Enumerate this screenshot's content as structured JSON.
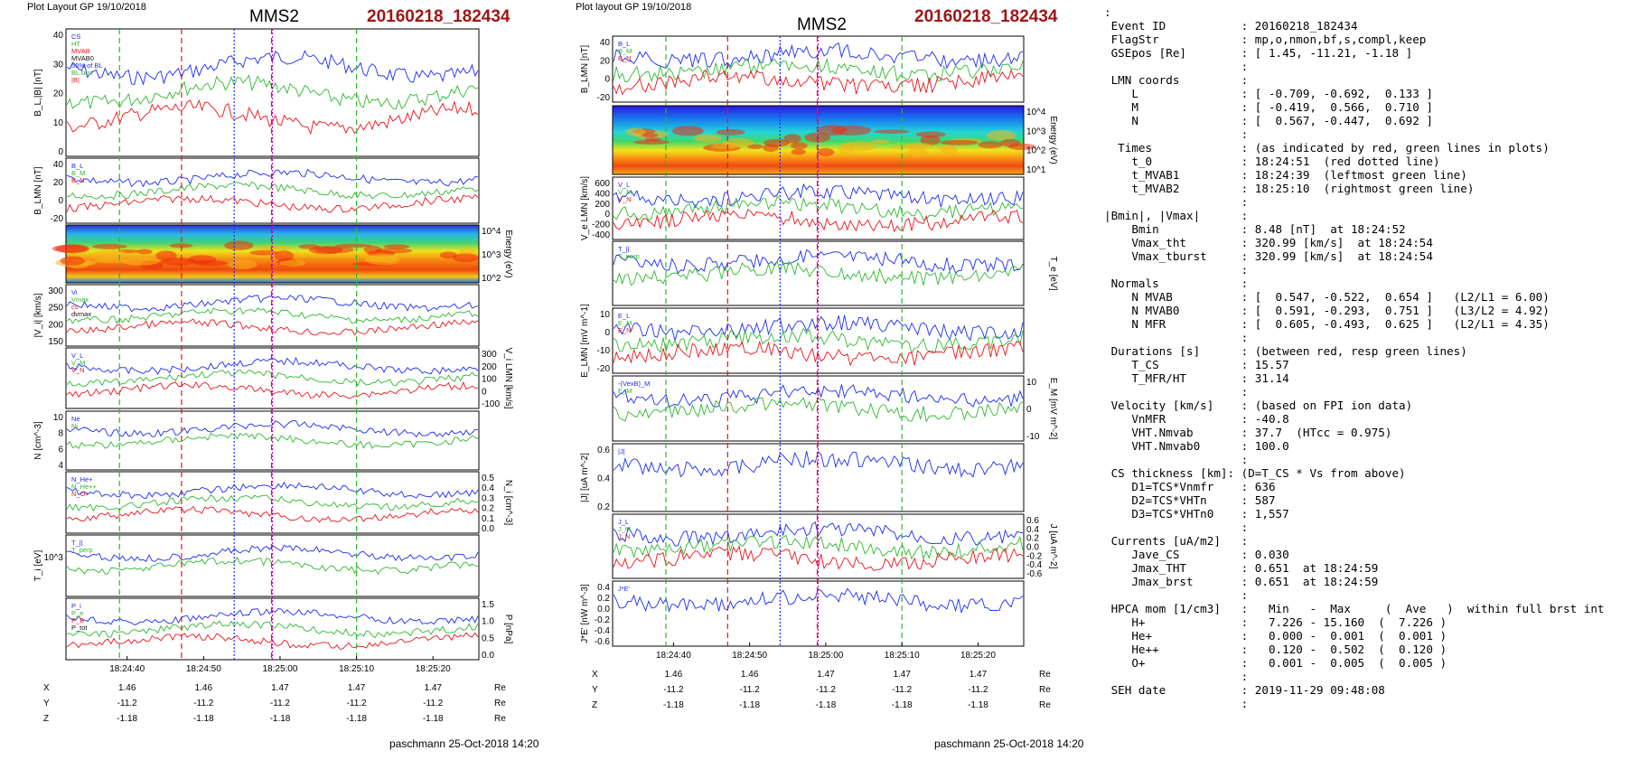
{
  "page": {
    "left_header": "Plot Layout GP 19/10/2018",
    "right_header": "Plot layout GP 19/10/2018",
    "left_title": "MMS2",
    "right_title": "MMS2",
    "left_event": "20160218_182434",
    "right_event": "20160218_182434",
    "left_footer": "paschmann 25-Oct-2018 14:20",
    "right_footer": "paschmann 25-Oct-2018 14:20"
  },
  "colors": {
    "red": "#e8141b",
    "green": "#2eb82e",
    "blue": "#1a2cf0",
    "magenta": "#c000c0",
    "gray": "#999999",
    "black": "#111111"
  },
  "chart_data": [
    {
      "type": "line",
      "title": "MMS2",
      "subtitle": "20160218_182434",
      "x_ticks": [
        "18:24:40",
        "18:24:50",
        "18:25:00",
        "18:25:10",
        "18:25:20"
      ],
      "markers": {
        "t0": "18:24:51",
        "t_MVAB1": "18:24:39",
        "t_MVAB2": "18:25:10",
        "t_center": "18:24:54",
        "t_jmax": "18:24:59"
      },
      "position_table": {
        "rows": [
          {
            "label": "X",
            "values": [
              "1.46",
              "1.46",
              "1.47",
              "1.47",
              "1.47"
            ],
            "unit": "Re"
          },
          {
            "label": "Y",
            "values": [
              "-11.2",
              "-11.2",
              "-11.2",
              "-11.2",
              "-11.2"
            ],
            "unit": "Re"
          },
          {
            "label": "Z",
            "values": [
              "-1.18",
              "-1.18",
              "-1.18",
              "-1.18",
              "-1.18"
            ],
            "unit": "Re"
          }
        ]
      },
      "panels": [
        {
          "ylabel": "B_L,|B| [nT]",
          "yticks": [
            "40",
            "30",
            "20",
            "10",
            "0"
          ],
          "legend": [
            "CS",
            "HT",
            "MVAB",
            "MVAB0",
            "50% of BL",
            "BL brst",
            "|B|"
          ]
        },
        {
          "ylabel": "B_LMN [nT]",
          "yticks": [
            "40",
            "20",
            "0",
            "-20"
          ],
          "legend": [
            "B_L",
            "B_M",
            "B_N"
          ]
        },
        {
          "ylabel": "Energy (eV)",
          "yticks": [
            "10^4",
            "10^3",
            "10^2"
          ],
          "type": "spectrogram"
        },
        {
          "ylabel": "|V_i| [km/s]",
          "yticks": [
            "300",
            "250",
            "200",
            "150"
          ],
          "legend": [
            "Vi",
            "Vmax",
            "cs",
            "dvmax"
          ]
        },
        {
          "ylabel": "V_i LMN [km/s]",
          "yticks": [
            "300",
            "200",
            "100",
            "0",
            "-100"
          ],
          "legend": [
            "V_L",
            "V_M",
            "V_N"
          ]
        },
        {
          "ylabel": "N [cm^-3]",
          "yticks": [
            "10",
            "8",
            "6",
            "4"
          ],
          "legend": [
            "Ne",
            "Ni"
          ]
        },
        {
          "ylabel": "N_i [cm^-3]",
          "yticks": [
            "0.5",
            "0.4",
            "0.3",
            "0.2",
            "0.1",
            "0.0"
          ],
          "legend": [
            "N_He+",
            "N_He++",
            "N_O+"
          ]
        },
        {
          "ylabel": "T_i [eV]",
          "yticks": [
            "10^3"
          ],
          "legend": [
            "T_||",
            "T_perp"
          ]
        },
        {
          "ylabel": "P [nPa]",
          "yticks": [
            "1.5",
            "1.0",
            "0.5",
            "0.0"
          ],
          "legend": [
            "P_i",
            "P_e",
            "P_B",
            "P_tot"
          ]
        }
      ]
    },
    {
      "type": "line",
      "title": "MMS2",
      "subtitle": "20160218_182434",
      "x_ticks": [
        "18:24:40",
        "18:24:50",
        "18:25:00",
        "18:25:10",
        "18:25:20"
      ],
      "position_table": {
        "rows": [
          {
            "label": "X",
            "values": [
              "1.46",
              "1.46",
              "1.47",
              "1.47",
              "1.47"
            ],
            "unit": "Re"
          },
          {
            "label": "Y",
            "values": [
              "-11.2",
              "-11.2",
              "-11.2",
              "-11.2",
              "-11.2"
            ],
            "unit": "Re"
          },
          {
            "label": "Z",
            "values": [
              "-1.18",
              "-1.18",
              "-1.18",
              "-1.18",
              "-1.18"
            ],
            "unit": "Re"
          }
        ]
      },
      "panels": [
        {
          "ylabel": "B_LMN [nT]",
          "yticks": [
            "40",
            "20",
            "0",
            "-20"
          ],
          "legend": [
            "B_L",
            "B_M",
            "B_N"
          ]
        },
        {
          "ylabel": "Energy (eV)",
          "yticks": [
            "10^4",
            "10^3",
            "10^2",
            "10^1"
          ],
          "type": "spectrogram"
        },
        {
          "ylabel": "V_e LMN [km/s]",
          "yticks": [
            "600",
            "400",
            "200",
            "0",
            "-200",
            "-400"
          ],
          "legend": [
            "V_L",
            "V_M",
            "V_N"
          ]
        },
        {
          "ylabel": "T_e [eV]",
          "yticks": [],
          "legend": [
            "T_||",
            "T_perp"
          ]
        },
        {
          "ylabel": "E_LMN [mV m^-1]",
          "yticks": [
            "10",
            "0",
            "-10",
            "-20"
          ],
          "legend": [
            "E_L",
            "E_M",
            "E_N"
          ]
        },
        {
          "ylabel": "E_M [mV m^-2]",
          "yticks": [
            "10",
            "0",
            "-10"
          ],
          "legend": [
            "-(VexB)_M",
            "E_M"
          ]
        },
        {
          "ylabel": "|J| [uA m^-2]",
          "yticks": [
            "0.6",
            "0.4",
            "0.2"
          ],
          "legend": [
            "|J|"
          ]
        },
        {
          "ylabel": "J [uA m^-2]",
          "yticks": [
            "0.6",
            "0.4",
            "0.2",
            "0.0",
            "-0.2",
            "-0.4",
            "-0.6"
          ],
          "legend": [
            "J_L",
            "J_M",
            "J_N"
          ]
        },
        {
          "ylabel": "J*E' [nW m^-3]",
          "yticks": [
            "0.4",
            "0.2",
            "0.0",
            "-0.2",
            "-0.4",
            "-0.6"
          ],
          "legend": [
            "J*E'"
          ]
        }
      ]
    }
  ],
  "params_text": ":\n Event ID           : 20160218_182434\n FlagStr            : mp,o,nmon,bf,s,compl,keep\n GSEpos [Re]        : [ 1.45, -11.21, -1.18 ]\n                    :\n LMN coords         :\n    L               : [ -0.709, -0.692,  0.133 ]\n    M               : [ -0.419,  0.566,  0.710 ]\n    N               : [  0.567, -0.447,  0.692 ]\n                    :\n  Times             : (as indicated by red, green lines in plots)\n    t_0             : 18:24:51  (red dotted line)\n    t_MVAB1         : 18:24:39  (leftmost green line)\n    t_MVAB2         : 18:25:10  (rightmost green line)\n                    :\n|Bmin|, |Vmax|      :\n    Bmin            : 8.48 [nT]  at 18:24:52\n    Vmax_tht        : 320.99 [km/s]  at 18:24:54\n    Vmax_tburst     : 320.99 [km/s]  at 18:24:54\n                    :\n Normals            :\n    N MVAB          : [  0.547, -0.522,  0.654 ]   (L2/L1 = 6.00)\n    N MVAB0         : [  0.591, -0.293,  0.751 ]   (L3/L2 = 4.92)\n    N MFR           : [  0.605, -0.493,  0.625 ]   (L2/L1 = 4.35)\n                    :\n Durations [s]      : (between red, resp green lines)\n    T_CS            : 15.57\n    T_MFR/HT        : 31.14\n                    :\n Velocity [km/s]    : (based on FPI ion data)\n    VnMFR           : -40.8\n    VHT.Nmvab       : 37.7  (HTcc = 0.975)\n    VHT.Nmvab0      : 100.0\n                    :\n CS thickness [km]: (D=T_CS * Vs from above)\n    D1=TCS*Vnmfr    : 636\n    D2=TCS*VHTn     : 587\n    D3=TCS*VHTn0    : 1,557\n                    :\n Currents [uA/m2]   :\n    Jave_CS         : 0.030\n    Jmax_THT        : 0.651  at 18:24:59\n    Jmax_brst       : 0.651  at 18:24:59\n                    :\n HPCA mom [1/cm3]   :   Min   -  Max     (  Ave   )  within full brst int\n    H+              :   7.226 - 15.160  (  7.226 )\n    He+             :   0.000 -  0.001  (  0.001 )\n    He++            :   0.120 -  0.502  (  0.120 )\n    O+              :   0.001 -  0.005  (  0.005 )\n                    :\n SEH date           : 2019-11-29 09:48:08\n                    :"
}
